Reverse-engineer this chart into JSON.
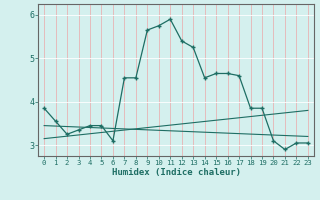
{
  "title": "",
  "xlabel": "Humidex (Indice chaleur)",
  "ylabel": "",
  "bg_color": "#d4f0ee",
  "line_color": "#1e6e64",
  "grid_color_v": "#e8b4b4",
  "grid_color_h": "#ffffff",
  "xlim": [
    -0.5,
    23.5
  ],
  "ylim": [
    2.75,
    6.25
  ],
  "yticks": [
    3,
    4,
    5,
    6
  ],
  "xticks": [
    0,
    1,
    2,
    3,
    4,
    5,
    6,
    7,
    8,
    9,
    10,
    11,
    12,
    13,
    14,
    15,
    16,
    17,
    18,
    19,
    20,
    21,
    22,
    23
  ],
  "main_line_x": [
    0,
    1,
    2,
    3,
    4,
    5,
    6,
    7,
    8,
    9,
    10,
    11,
    12,
    13,
    14,
    15,
    16,
    17,
    18,
    19,
    20,
    21,
    22,
    23
  ],
  "main_line_y": [
    3.85,
    3.55,
    3.25,
    3.35,
    3.45,
    3.45,
    3.1,
    4.55,
    4.55,
    5.65,
    5.75,
    5.9,
    5.4,
    5.25,
    4.55,
    4.65,
    4.65,
    4.6,
    3.85,
    3.85,
    3.1,
    2.9,
    3.05,
    3.05
  ],
  "line2_x": [
    0,
    23
  ],
  "line2_y": [
    3.15,
    3.8
  ],
  "line3_x": [
    0,
    23
  ],
  "line3_y": [
    3.45,
    3.2
  ],
  "figsize": [
    3.2,
    2.0
  ],
  "dpi": 100
}
